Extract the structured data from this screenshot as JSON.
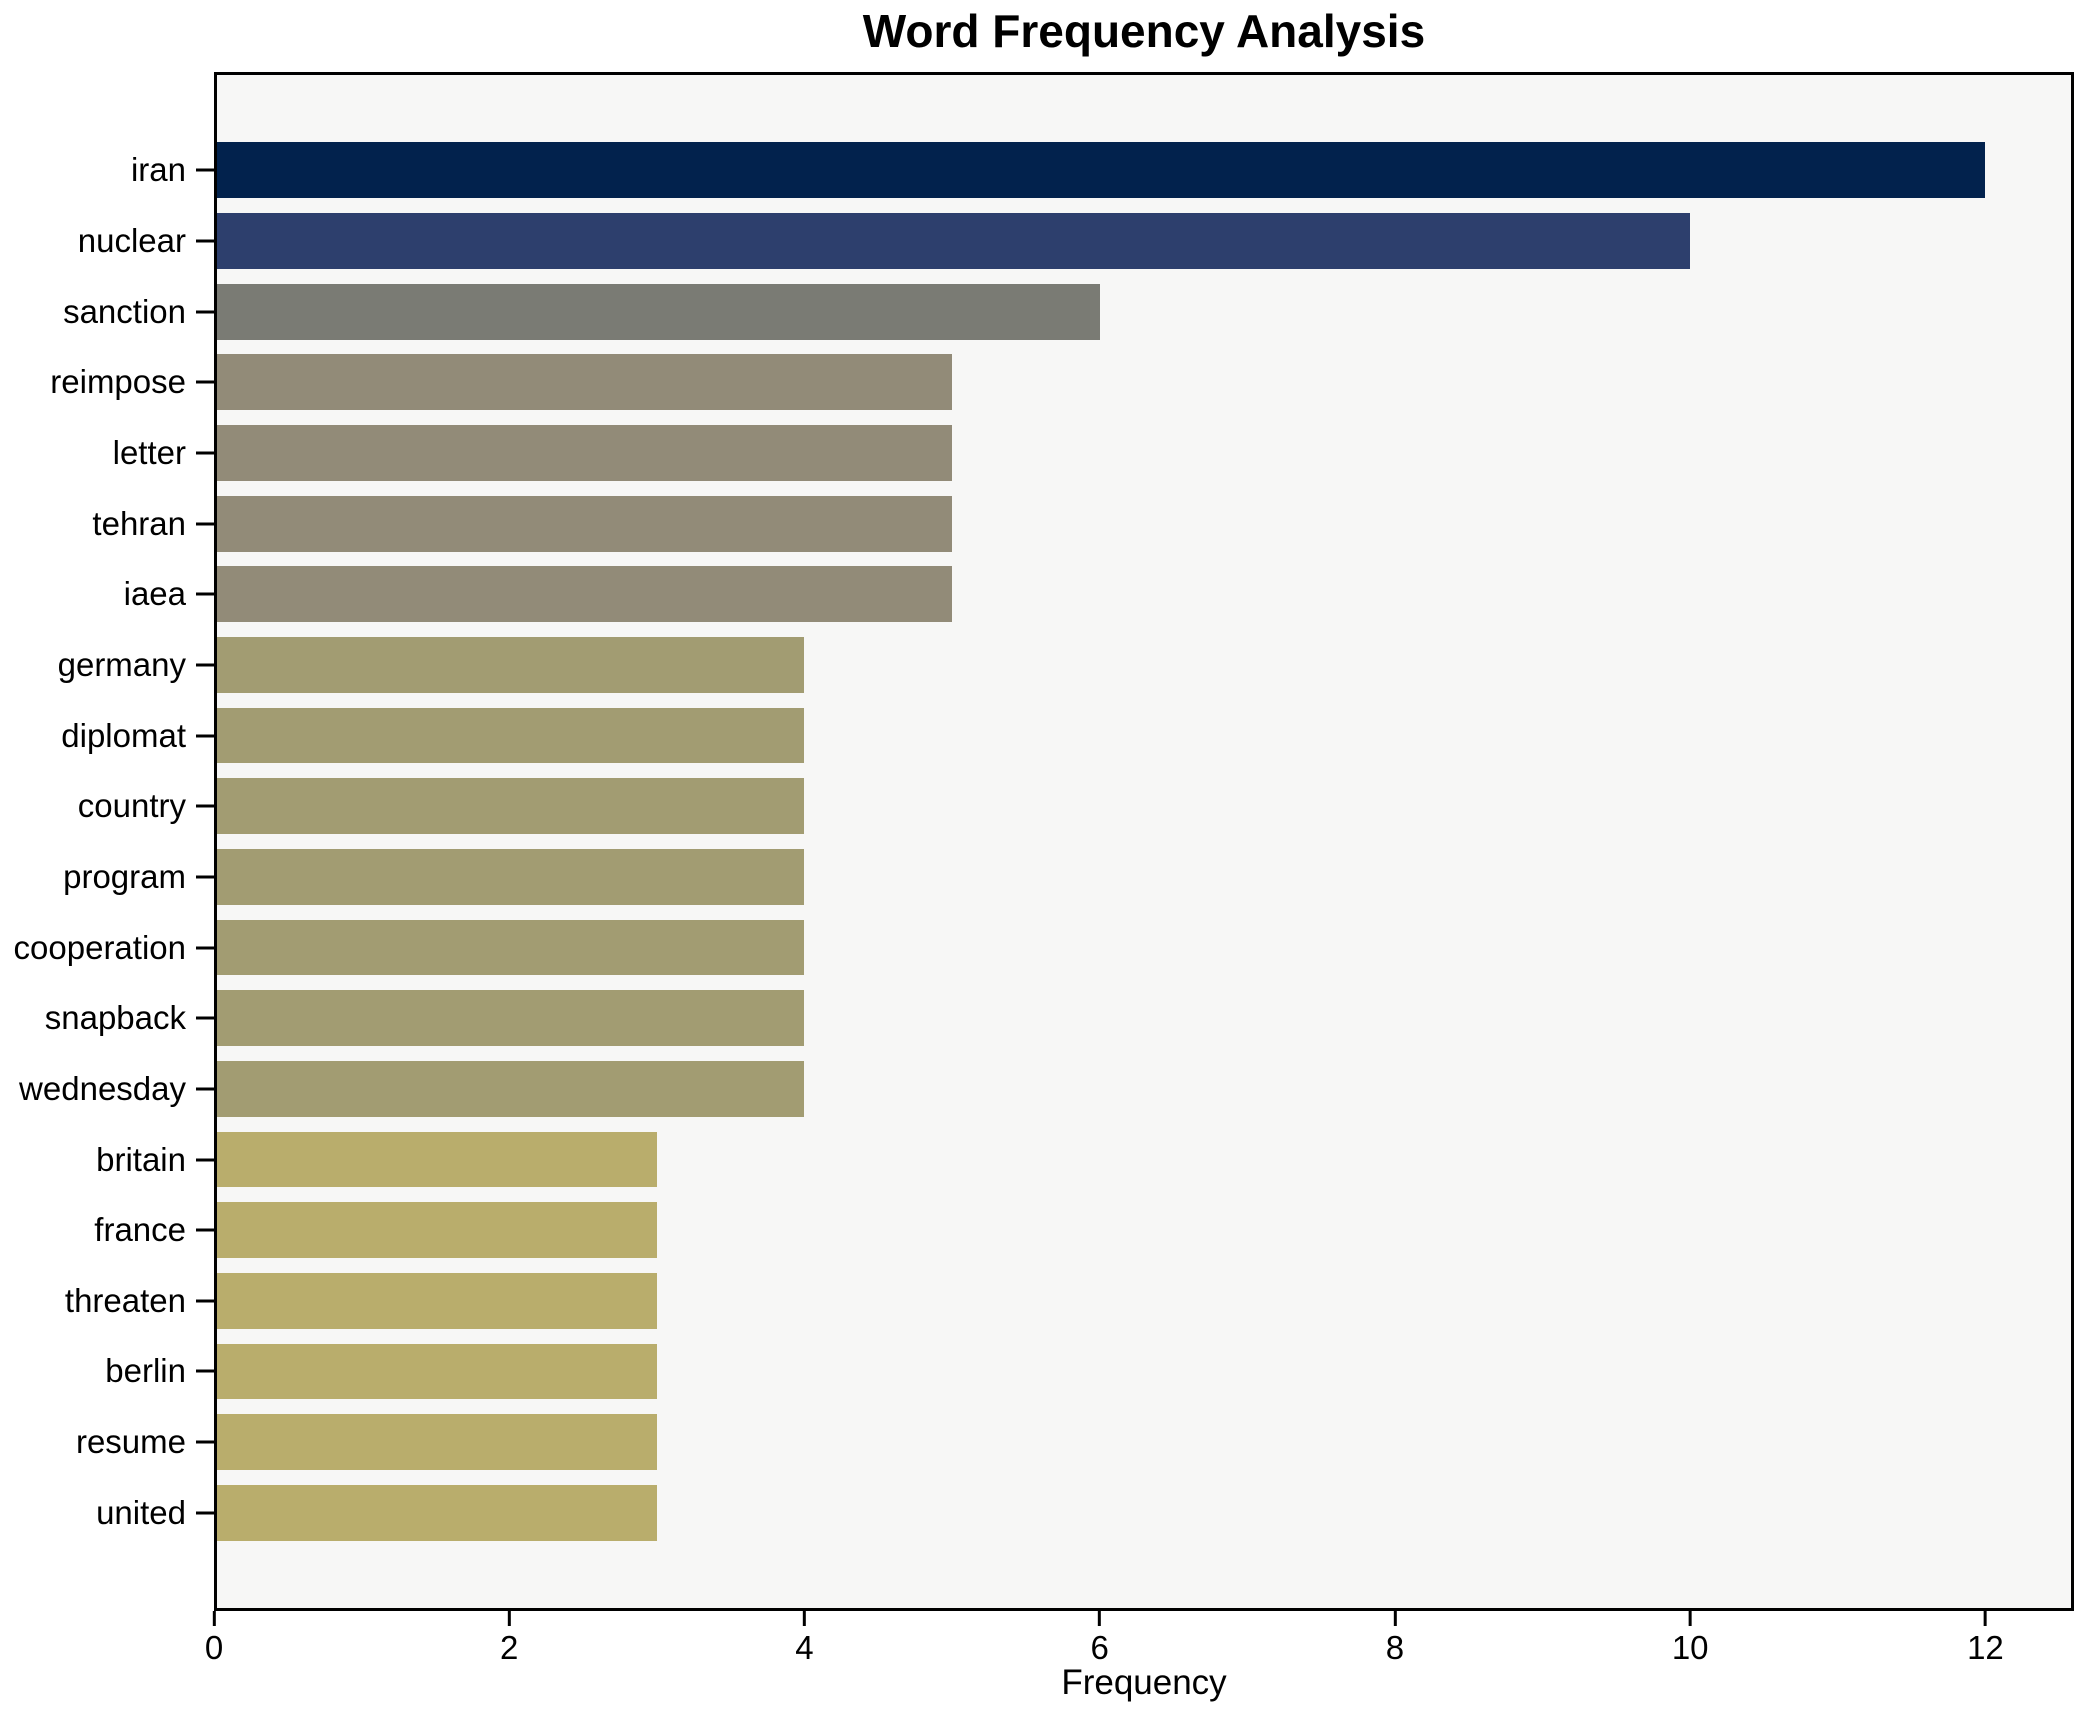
{
  "title": "Word Frequency Analysis",
  "chart_data": {
    "type": "bar",
    "orientation": "horizontal",
    "title": "Word Frequency Analysis",
    "xlabel": "Frequency",
    "ylabel": "",
    "categories": [
      "iran",
      "nuclear",
      "sanction",
      "reimpose",
      "letter",
      "tehran",
      "iaea",
      "germany",
      "diplomat",
      "country",
      "program",
      "cooperation",
      "snapback",
      "wednesday",
      "britain",
      "france",
      "threaten",
      "berlin",
      "resume",
      "united"
    ],
    "values": [
      12,
      10,
      6,
      5,
      5,
      5,
      5,
      4,
      4,
      4,
      4,
      4,
      4,
      4,
      3,
      3,
      3,
      3,
      3,
      3
    ],
    "bar_colors": [
      "#02224d",
      "#2d3f6d",
      "#7a7b74",
      "#928b78",
      "#928b78",
      "#928b78",
      "#928b78",
      "#a29c72",
      "#a29c72",
      "#a29c72",
      "#a29c72",
      "#a29c72",
      "#a29c72",
      "#a29c72",
      "#b9ad6c",
      "#b9ad6c",
      "#b9ad6c",
      "#b9ad6c",
      "#b9ad6c",
      "#b9ad6c"
    ],
    "xticks": [
      0,
      2,
      4,
      6,
      8,
      10,
      12
    ],
    "xlim": [
      0,
      12.6
    ],
    "grid": false,
    "legend": false,
    "plot_background": "#f7f7f6",
    "figure_background": "#ffffff",
    "spine_color": "#000000",
    "text_color": "#000000"
  }
}
